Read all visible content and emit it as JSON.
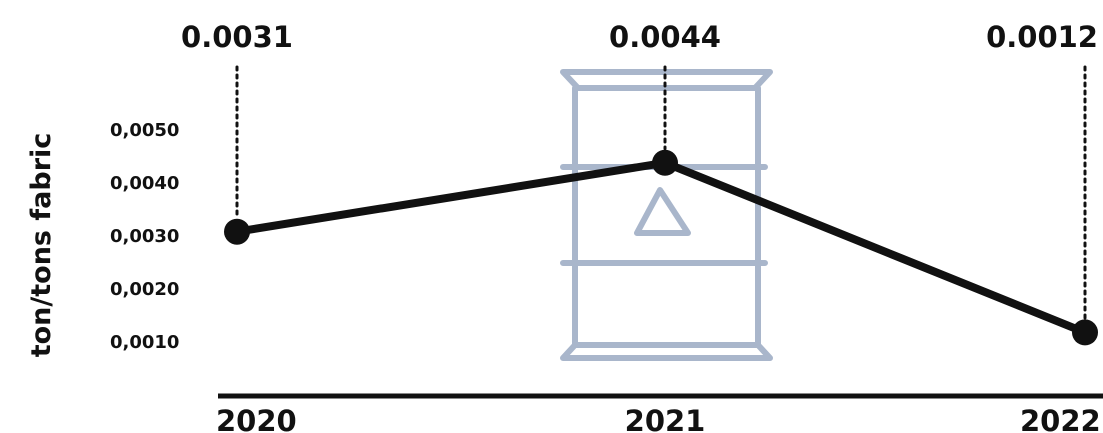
{
  "chart_data": {
    "type": "line",
    "title": "",
    "ylabel": "ton/tons fabric",
    "xlabel": "",
    "categories": [
      "2020",
      "2021",
      "2022"
    ],
    "series": [
      {
        "values": [
          0.0031,
          0.0044,
          0.0012
        ]
      }
    ],
    "data_labels": [
      "0.0031",
      "0.0044",
      "0.0012"
    ],
    "y_ticks": [
      {
        "value": 0.005,
        "label": "0,0050"
      },
      {
        "value": 0.004,
        "label": "0,0040"
      },
      {
        "value": 0.003,
        "label": "0,0030"
      },
      {
        "value": 0.002,
        "label": "0,0020"
      },
      {
        "value": 0.001,
        "label": "0,0010"
      }
    ],
    "grid": false,
    "decoration": "oil-barrel-icon",
    "colors": {
      "line": "#111111",
      "barrel": "#a9b6cb"
    }
  }
}
